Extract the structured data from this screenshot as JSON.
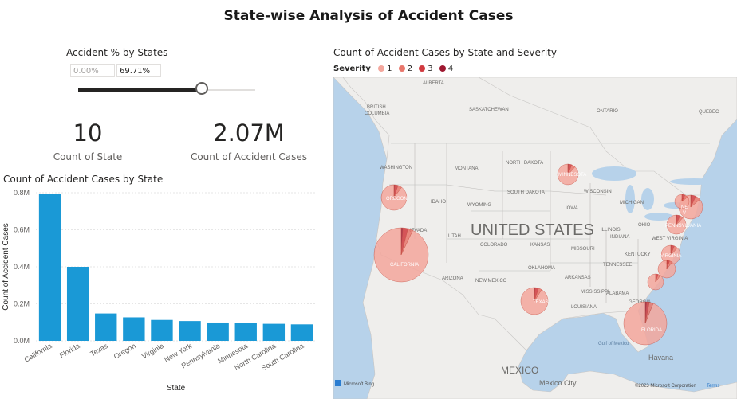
{
  "report": {
    "title": "State-wise Analysis of Accident Cases"
  },
  "slicer": {
    "title": "Accident % by States",
    "min_value": "0.00%",
    "max_value": "69.71%",
    "position": 0.7
  },
  "kpis": {
    "state_count": {
      "value": "10",
      "label": "Count of State"
    },
    "accident_count": {
      "value": "2.07M",
      "label": "Count of Accident Cases"
    }
  },
  "colors": {
    "bar": "#1a99d6",
    "map_water": "#b7d2ea",
    "map_land": "#efeeec",
    "sev1": "#f4a79d",
    "sev2": "#e8766b",
    "sev3": "#d13a3f",
    "sev4": "#9e1830"
  },
  "map": {
    "title": "Count of Accident Cases by State and Severity",
    "legend_title": "Severity",
    "legend": [
      "1",
      "2",
      "3",
      "4"
    ],
    "country_label": "UNITED STATES",
    "labels": {
      "alberta": "ALBERTA",
      "bc1": "BRITISH",
      "bc2": "COLUMBIA",
      "sask": "SASKATCHEWAN",
      "ontario": "ONTARIO",
      "quebec": "QUEBEC",
      "washington": "WASHINGTON",
      "montana": "MONTANA",
      "northdakota": "NORTH DAKOTA",
      "southdakota": "SOUTH DAKOTA",
      "wisconsin": "WISCONSIN",
      "idaho": "IDAHO",
      "wyoming": "WYOMING",
      "iowa": "IOWA",
      "michigan": "MICHIGAN",
      "nevada": "NEVADA",
      "utah": "UTAH",
      "colorado": "COLORADO",
      "kansas": "KANSAS",
      "missouri": "MISSOURI",
      "illinois": "ILLINOIS",
      "indiana": "INDIANA",
      "ohio": "OHIO",
      "westvirginia": "WEST VIRGINIA",
      "kentucky": "KENTUCKY",
      "tennessee": "TENNESSEE",
      "arizona": "ARIZONA",
      "newmexico": "NEW MEXICO",
      "oklahoma": "OKLAHOMA",
      "arkansas": "ARKANSAS",
      "mississippi": "MISSISSIPPI",
      "alabama": "ALABAMA",
      "louisiana": "LOUISIANA",
      "georgia": "GEORGIA",
      "mexico": "MEXICO",
      "mexicocity": "Mexico City",
      "gulf": "Gulf of Mexico",
      "havana": "Havana",
      "california": "CALIFORNIA",
      "oregon": "OREGON",
      "texas": "TEXAS",
      "florida": "FLORIDA",
      "minnesota": "MINNESOTA",
      "pennsylvania": "PENNSYLVANIA",
      "virginia": "VIRGINIA",
      "ne1": "NE",
      "ne2": "V"
    },
    "bing": "Microsoft Bing",
    "copyright": "©2023 Microsoft Corporation",
    "terms": "Terms"
  },
  "chart_data": {
    "type": "bar",
    "title": "Count of Accident Cases by State",
    "xlabel": "State",
    "ylabel": "Count of Accident Cases",
    "categories": [
      "California",
      "Florida",
      "Texas",
      "Oregon",
      "Virginia",
      "New York",
      "Pennsylvania",
      "Minnesota",
      "North Carolina",
      "South Carolina"
    ],
    "values": [
      795000,
      400000,
      148000,
      127000,
      113000,
      107000,
      99000,
      97000,
      92000,
      89000
    ],
    "ylim": [
      0,
      800000
    ],
    "yticks": [
      0,
      200000,
      400000,
      600000,
      800000
    ],
    "ytick_labels": [
      "0.0M",
      "0.2M",
      "0.4M",
      "0.6M",
      "0.8M"
    ],
    "grid": true
  }
}
